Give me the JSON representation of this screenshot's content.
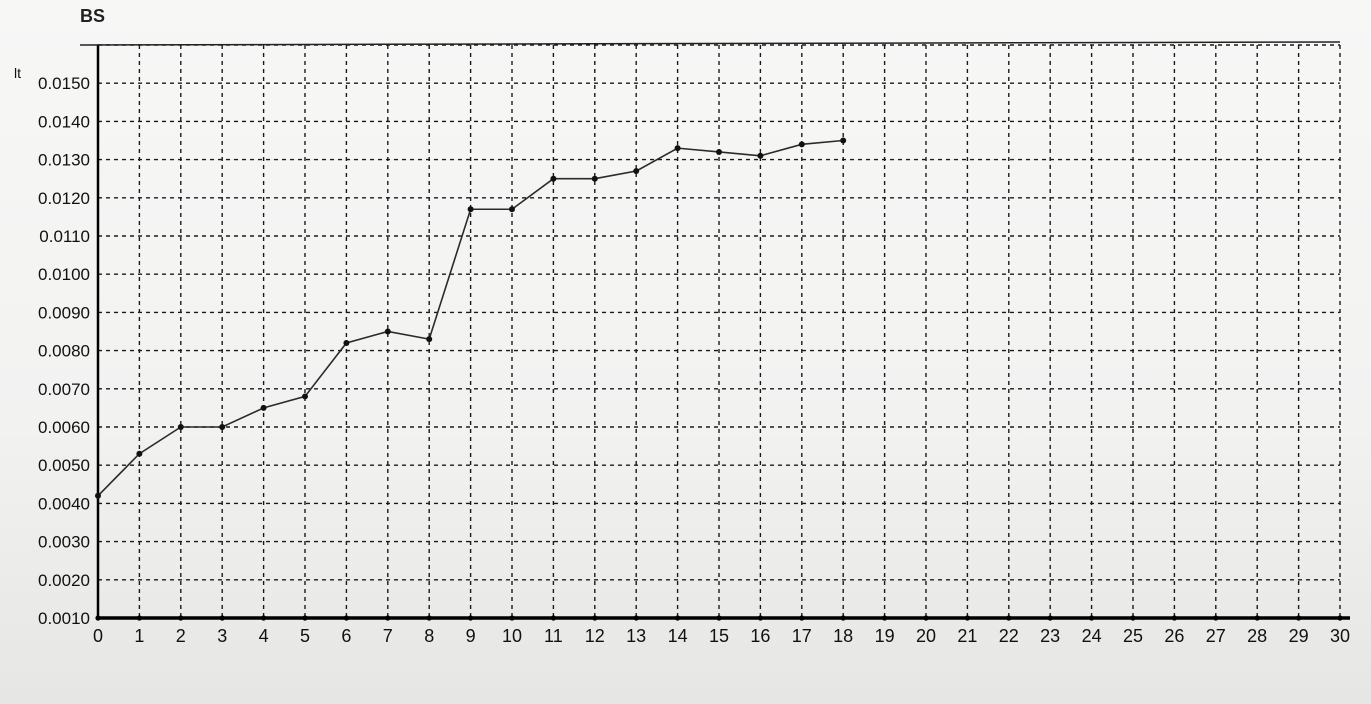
{
  "chart_data": {
    "type": "line",
    "title": "",
    "xlabel": "",
    "ylabel": "",
    "corner_text": "BS",
    "unit_fragment": "lt",
    "x_ticks": [
      "0",
      "1",
      "2",
      "3",
      "4",
      "5",
      "6",
      "7",
      "8",
      "9",
      "10",
      "11",
      "12",
      "13",
      "14",
      "15",
      "16",
      "17",
      "18",
      "19",
      "20",
      "21",
      "22",
      "23",
      "24",
      "25",
      "26",
      "27",
      "28",
      "29",
      "30"
    ],
    "y_ticks": [
      "0.0010",
      "0.0020",
      "0.0030",
      "0.0040",
      "0.0050",
      "0.0060",
      "0.0070",
      "0.0080",
      "0.0090",
      "0.0100",
      "0.0110",
      "0.0120",
      "0.0130",
      "0.0140",
      "0.0150"
    ],
    "xlim": [
      0,
      30
    ],
    "ylim": [
      0.001,
      0.016
    ],
    "grid": true,
    "series": [
      {
        "x": [
          0,
          1,
          2,
          3,
          4,
          5,
          6,
          7,
          8,
          9,
          10,
          11,
          12,
          13,
          14,
          15,
          16,
          17,
          18
        ],
        "y": [
          0.0042,
          0.0053,
          0.006,
          0.006,
          0.0065,
          0.0068,
          0.0082,
          0.0085,
          0.0083,
          0.0117,
          0.0117,
          0.0125,
          0.0125,
          0.0127,
          0.0133,
          0.0132,
          0.0131,
          0.0134,
          0.0135
        ],
        "color": "#2b2b2b"
      }
    ]
  }
}
